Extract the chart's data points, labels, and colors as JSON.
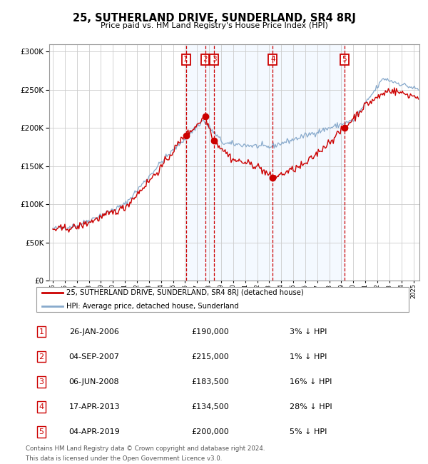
{
  "title": "25, SUTHERLAND DRIVE, SUNDERLAND, SR4 8RJ",
  "subtitle": "Price paid vs. HM Land Registry's House Price Index (HPI)",
  "legend_label_red": "25, SUTHERLAND DRIVE, SUNDERLAND, SR4 8RJ (detached house)",
  "legend_label_blue": "HPI: Average price, detached house, Sunderland",
  "footer_line1": "Contains HM Land Registry data © Crown copyright and database right 2024.",
  "footer_line2": "This data is licensed under the Open Government Licence v3.0.",
  "transactions": [
    {
      "num": "1",
      "date": "26-JAN-2006",
      "price": "£190,000",
      "hpi": "3% ↓ HPI",
      "year": 2006.07
    },
    {
      "num": "2",
      "date": "04-SEP-2007",
      "price": "£215,000",
      "hpi": "1% ↓ HPI",
      "year": 2007.67
    },
    {
      "num": "3",
      "date": "06-JUN-2008",
      "price": "£183,500",
      "hpi": "16% ↓ HPI",
      "year": 2008.43
    },
    {
      "num": "4",
      "date": "17-APR-2013",
      "price": "£134,500",
      "hpi": "28% ↓ HPI",
      "year": 2013.29
    },
    {
      "num": "5",
      "date": "04-APR-2019",
      "price": "£200,000",
      "hpi": "5% ↓ HPI",
      "year": 2019.26
    }
  ],
  "transaction_values": [
    190000,
    215000,
    183500,
    134500,
    200000
  ],
  "color_red": "#cc0000",
  "color_blue": "#88aacc",
  "color_bg_shaded": "#ddeeff",
  "color_grid": "#cccccc",
  "ylim": [
    0,
    310000
  ],
  "yticks": [
    0,
    50000,
    100000,
    150000,
    200000,
    250000,
    300000
  ],
  "xlim_start": 1994.7,
  "xlim_end": 2025.5
}
